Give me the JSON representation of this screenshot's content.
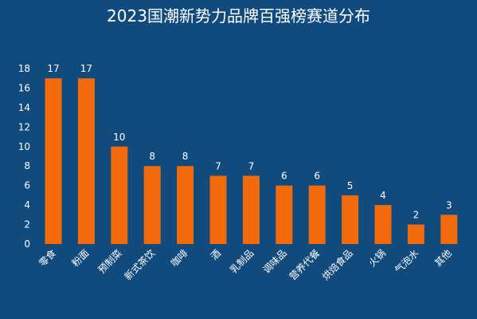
{
  "chart_data": {
    "type": "bar",
    "title": "2023国潮新势力品牌百强榜赛道分布",
    "categories": [
      "零食",
      "粉面",
      "预制菜",
      "新式茶饮",
      "咖啡",
      "酒",
      "乳制品",
      "调味品",
      "营养代餐",
      "烘焙食品",
      "火锅",
      "气泡水",
      "其他"
    ],
    "values": [
      17,
      17,
      10,
      8,
      8,
      7,
      7,
      6,
      6,
      5,
      4,
      2,
      3
    ],
    "ylim": [
      0,
      18
    ],
    "yticks": [
      0,
      2,
      4,
      6,
      8,
      10,
      12,
      14,
      16,
      18
    ],
    "grid": false,
    "legend": "none",
    "colors": {
      "background": "#114a7c",
      "bar": "#f26a0c",
      "text": "#ffffff"
    }
  }
}
